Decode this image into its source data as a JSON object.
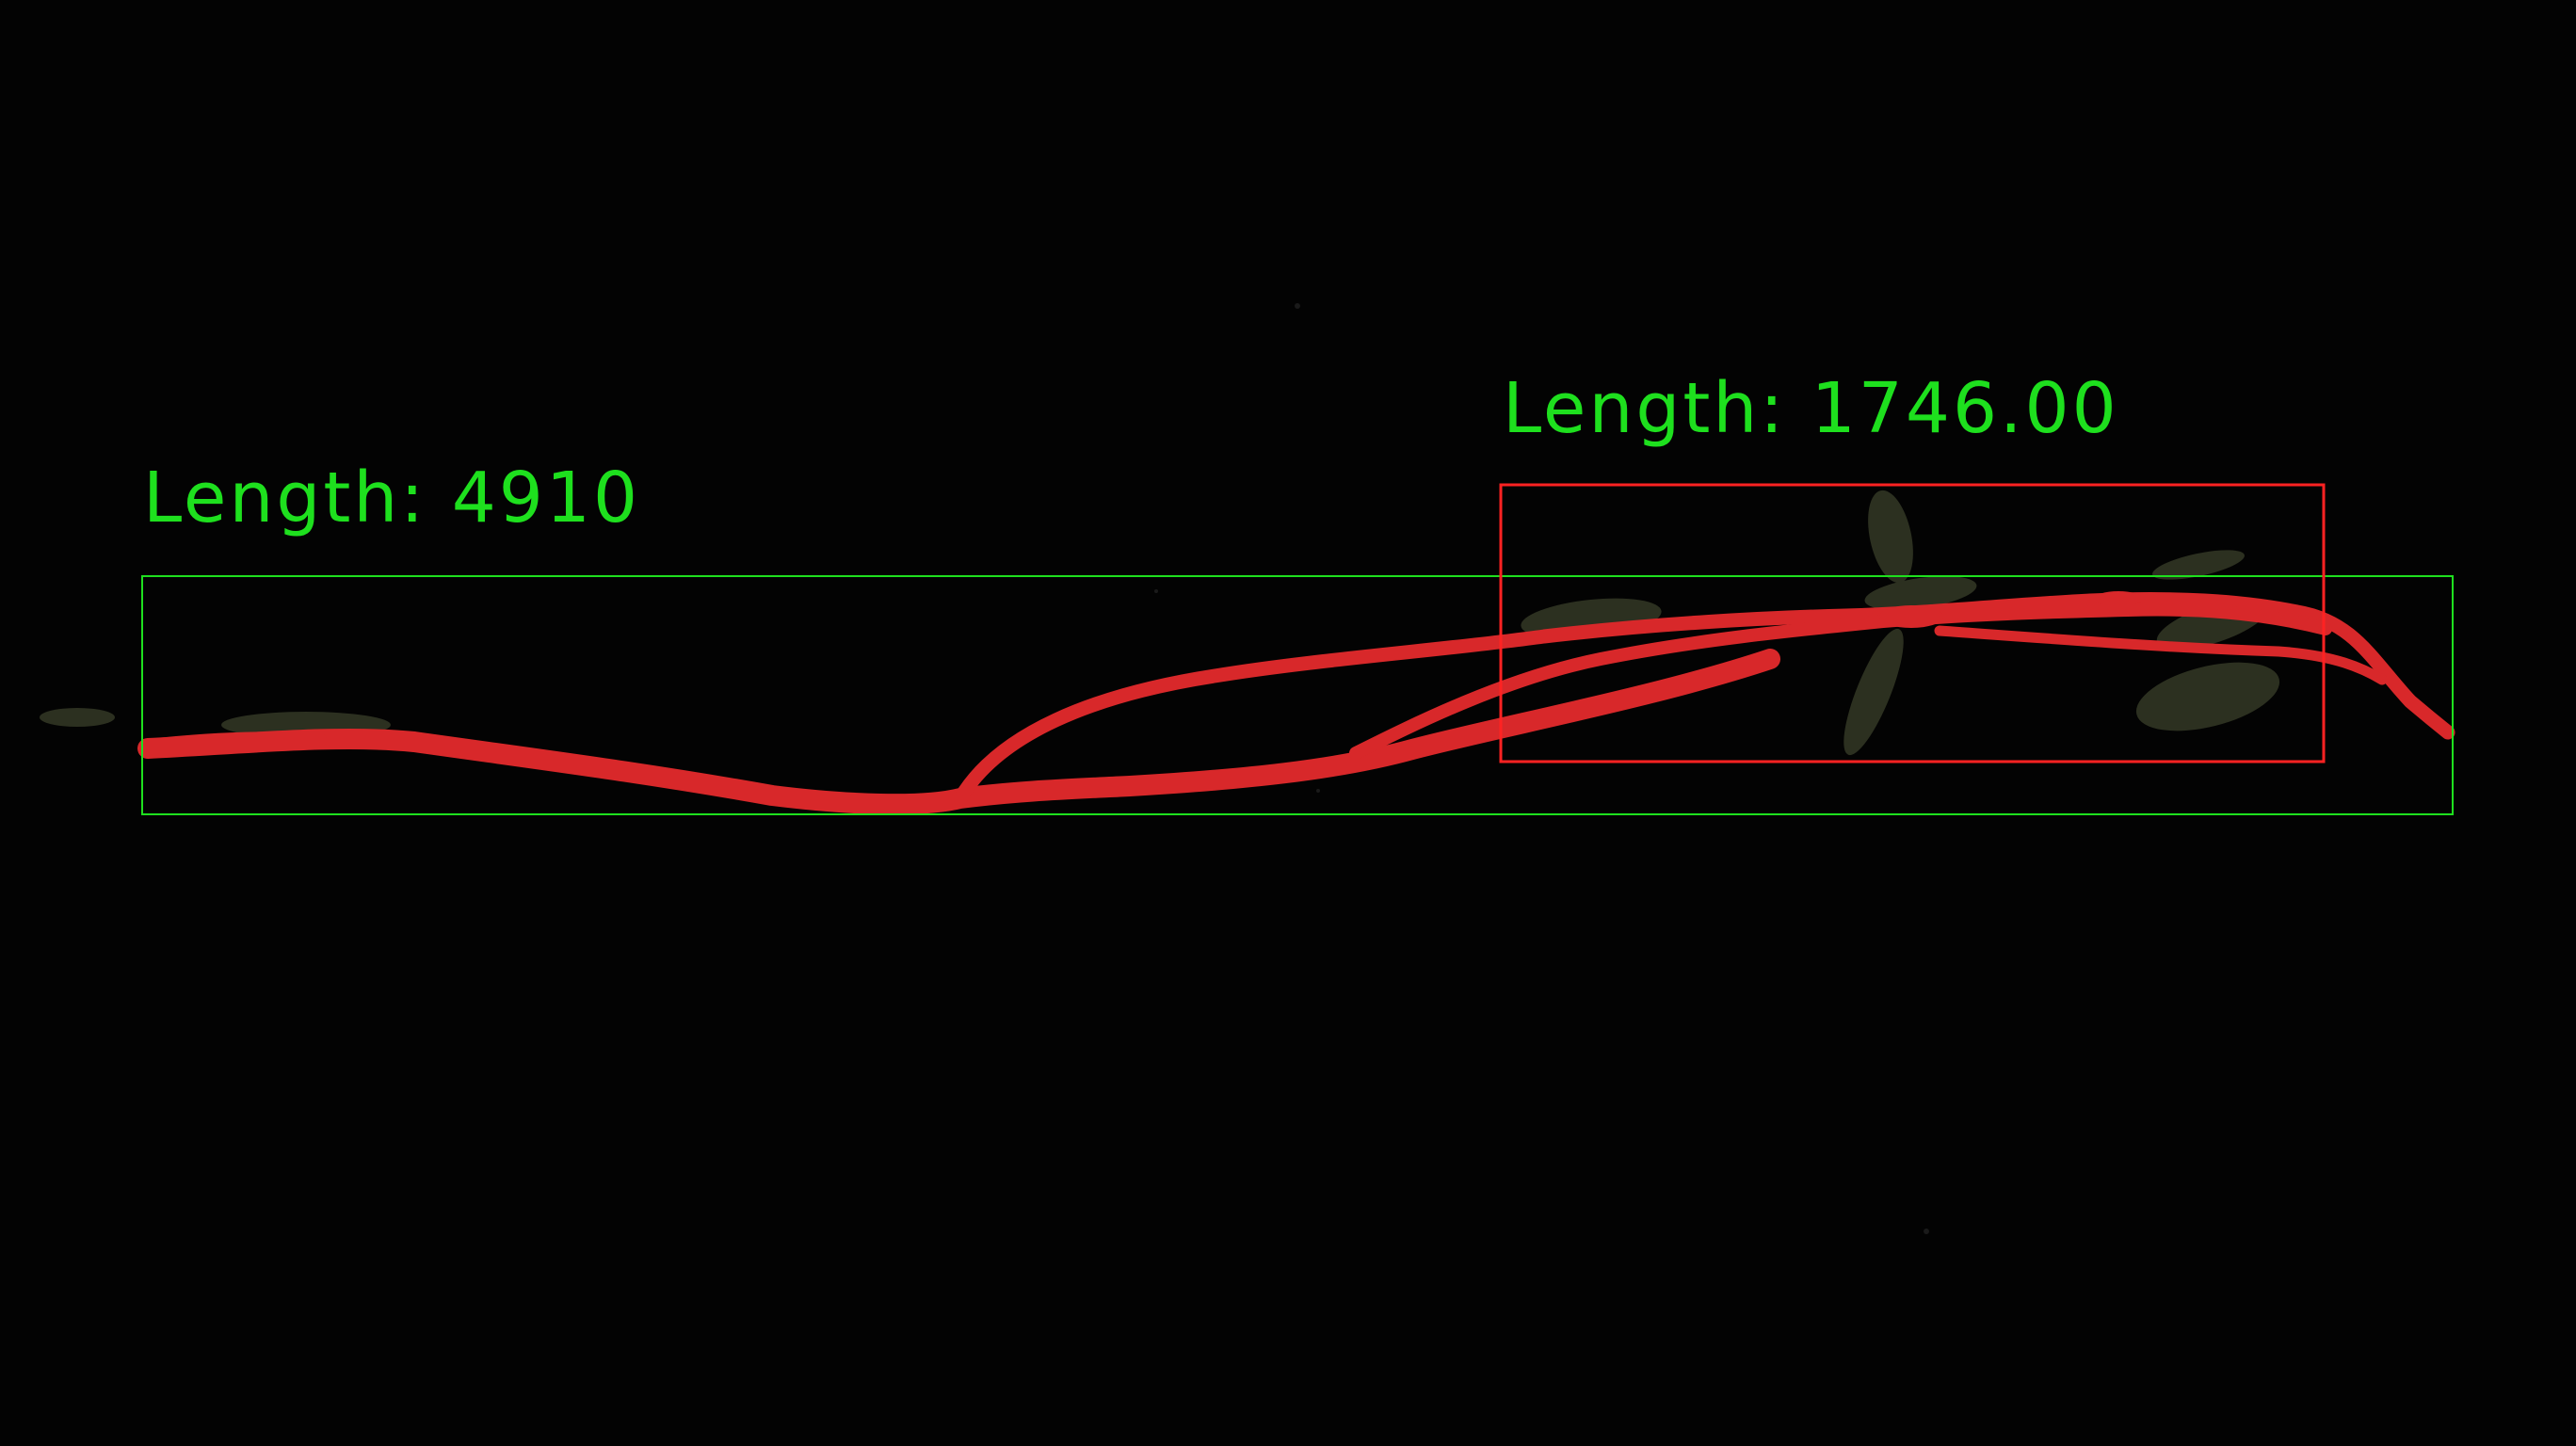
{
  "overlays": {
    "total": {
      "label": "Length: 4910",
      "color": "#1ee01e"
    },
    "region": {
      "label": "Length: 1746.00",
      "color": "#ff2222"
    }
  },
  "colors": {
    "background": "#030303",
    "root_mask": "#d8282a",
    "foliage": "#2f3322"
  }
}
